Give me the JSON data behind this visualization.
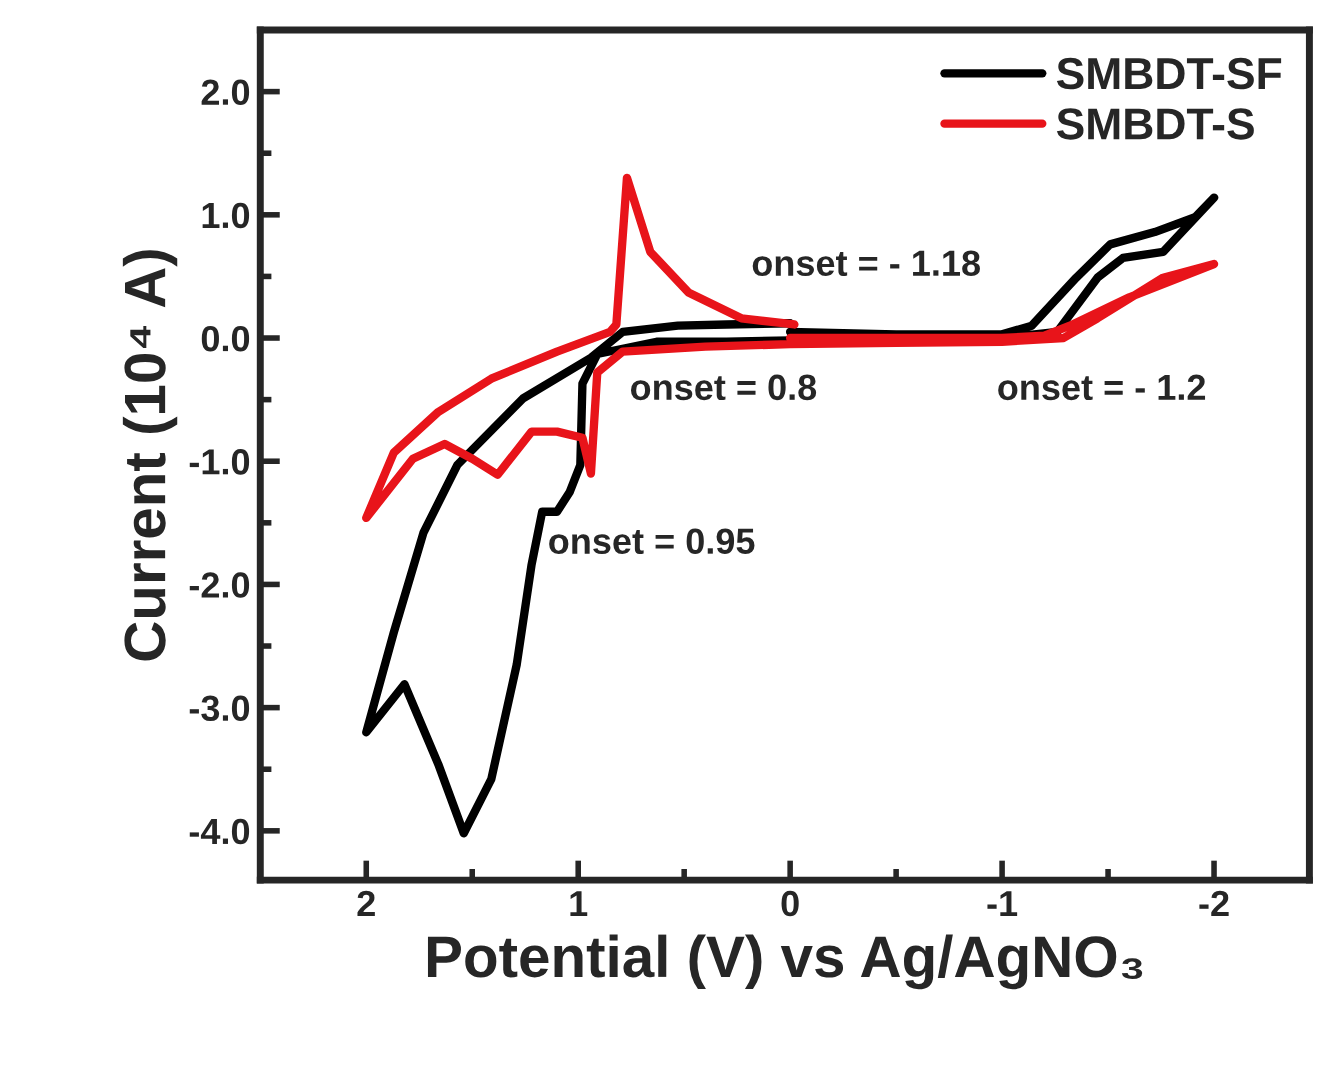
{
  "chart_data": {
    "type": "line",
    "xlabel": "Potential (V) vs Ag/AgNO₃",
    "ylabel": "Current (10⁴ A)",
    "xlim": [
      2.5,
      -2.45
    ],
    "ylim": [
      -4.4,
      2.5
    ],
    "xticks": [
      2,
      1,
      0,
      -1,
      -2
    ],
    "yticks": [
      {
        "value": 2,
        "label": "2.0"
      },
      {
        "value": 1,
        "label": "1.0"
      },
      {
        "value": 0,
        "label": "0.0"
      },
      {
        "value": -1,
        "label": "-1.0"
      },
      {
        "value": -2,
        "label": "-2.0"
      },
      {
        "value": -3,
        "label": "-3.0"
      },
      {
        "value": -4,
        "label": "-4.0"
      }
    ],
    "grid": false,
    "legend": "top right",
    "marker": "none",
    "line_style": "solid",
    "annotations": [
      "onset = - 1.18",
      "onset = 0.8",
      "onset = - 1.2",
      "onset = 0.95"
    ],
    "series": [
      {
        "name": "SMBDT-SF",
        "color": "#000000",
        "x": [
          0,
          -0.5,
          -1.0,
          -1.14,
          -1.35,
          -1.51,
          -1.72,
          -1.91,
          -2.0,
          -1.76,
          -1.57,
          -1.45,
          -1.26,
          -1.0,
          -0.5,
          0,
          0.3,
          0.63,
          0.91,
          0.98,
          0.99,
          1.04,
          1.1,
          1.17,
          1.22,
          1.29,
          1.41,
          1.54,
          1.66,
          1.82,
          2.0,
          1.87,
          1.73,
          1.57,
          1.26,
          0.94,
          0.79,
          0.53,
          0.3,
          0
        ],
        "values": [
          0.05,
          0.03,
          0.03,
          0.1,
          0.49,
          0.76,
          0.86,
          0.98,
          1.14,
          0.7,
          0.65,
          0.49,
          0.05,
          0.0,
          -0.02,
          -0.02,
          -0.03,
          -0.03,
          -0.13,
          -0.37,
          -1.03,
          -1.25,
          -1.41,
          -1.41,
          -1.84,
          -2.65,
          -3.58,
          -4.02,
          -3.46,
          -2.81,
          -3.2,
          -2.39,
          -1.58,
          -1.03,
          -0.49,
          -0.16,
          0.05,
          0.1,
          0.11,
          0.12
        ]
      },
      {
        "name": "SMBDT-S",
        "color": "#e8141a",
        "x": [
          0,
          -0.5,
          -1.0,
          -1.2,
          -1.32,
          -1.6,
          -2.0,
          -1.76,
          -1.45,
          -1.29,
          -1.0,
          -0.5,
          0,
          0.4,
          0.79,
          0.91,
          0.94,
          0.98,
          1.1,
          1.22,
          1.38,
          1.5,
          1.63,
          1.78,
          2.0,
          1.87,
          1.66,
          1.41,
          1.1,
          0.85,
          0.82,
          0.77,
          0.66,
          0.48,
          0.23,
          -0.02
        ],
        "values": [
          0.0,
          0.0,
          0.0,
          0.02,
          0.1,
          0.33,
          0.6,
          0.49,
          0.16,
          0.0,
          -0.03,
          -0.04,
          -0.05,
          -0.07,
          -0.11,
          -0.28,
          -1.1,
          -0.81,
          -0.76,
          -0.76,
          -1.11,
          -0.98,
          -0.86,
          -0.98,
          -1.46,
          -0.93,
          -0.6,
          -0.33,
          -0.11,
          0.05,
          0.11,
          1.3,
          0.7,
          0.37,
          0.16,
          0.11
        ]
      }
    ]
  }
}
